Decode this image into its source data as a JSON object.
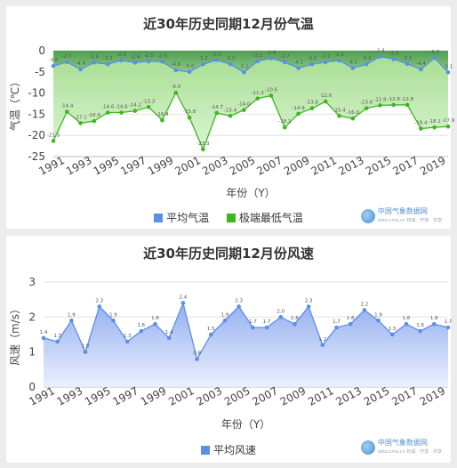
{
  "logo": {
    "name": "中国气象数据网",
    "sub": "data.cma.cn  权威 · 开放 · 共享"
  },
  "chart_data": [
    {
      "type": "area",
      "title": "近30年历史同期12月份气温",
      "xlabel": "年份（Y）",
      "ylabel": "气温（℃）",
      "ylim": [
        -25,
        0
      ],
      "yticks": [
        0,
        -5,
        -10,
        -15,
        -20,
        -25
      ],
      "x": [
        1991,
        1992,
        1993,
        1994,
        1995,
        1996,
        1997,
        1998,
        1999,
        2000,
        2001,
        2002,
        2003,
        2004,
        2005,
        2006,
        2007,
        2008,
        2009,
        2010,
        2011,
        2012,
        2013,
        2014,
        2015,
        2016,
        2017,
        2018,
        2019,
        2020
      ],
      "xtick_labels": [
        "1991",
        "1993",
        "1995",
        "1997",
        "1999",
        "2001",
        "2003",
        "2005",
        "2007",
        "2009",
        "2011",
        "2013",
        "2015",
        "2017",
        "2019"
      ],
      "series": [
        {
          "name": "平均气温",
          "color": "#5b8fe8",
          "values": [
            -3.6,
            -2.7,
            -4.4,
            -2.8,
            -3.2,
            -2.3,
            -2.8,
            -2.5,
            -2.6,
            -4.6,
            -5.0,
            -3.2,
            -2.2,
            -3.2,
            -5.1,
            -2.5,
            -1.8,
            -2.7,
            -4.1,
            -3.2,
            -2.7,
            -2.3,
            -4.1,
            -3.2,
            -1.4,
            -2.0,
            -3.1,
            -4.4,
            -1.7,
            -5.1
          ],
          "labels": [
            "-3.6",
            "-2.7",
            "-4.4",
            "-2.8",
            "-3.2",
            "-2.3",
            "-2.8",
            "-2.5",
            "-2.6",
            "-4.6",
            "-5.0",
            "-3.2",
            "-2.2",
            "-3.2",
            "-5.1",
            "-2.5",
            "-1.8",
            "-2.7",
            "-4.1",
            "-3.2",
            "-2.7",
            "-2.3",
            "-4.1",
            "-3.2",
            "-1.4",
            "-2.0",
            "-3.1",
            "-4.4",
            "-1.7",
            "-5.1"
          ]
        },
        {
          "name": "极端最低气温",
          "color": "#3cb81e",
          "values": [
            -21.3,
            -14.4,
            -17.1,
            -16.6,
            -14.6,
            -14.6,
            -14.2,
            -13.3,
            -16.4,
            -9.9,
            -15.8,
            -23.3,
            -14.7,
            -15.4,
            -14.0,
            -11.3,
            -10.6,
            -18.1,
            -14.9,
            -13.6,
            -12.0,
            -15.4,
            -16.0,
            -13.6,
            -12.9,
            -12.8,
            -12.8,
            -18.4,
            -18.1,
            -17.9
          ],
          "labels": [
            "-21.3",
            "-14.4",
            "-17.1",
            "-16.6",
            "-14.6",
            "-14.6",
            "-14.2",
            "-13.3",
            "-16.4",
            "-9.9",
            "-15.8",
            "-23.3",
            "-14.7",
            "-15.4",
            "-14.0",
            "-11.3",
            "-10.6",
            "-18.1",
            "-14.9",
            "-13.6",
            "-12.0",
            "-15.4",
            "-16.0",
            "-13.6",
            "-12.9",
            "-12.8",
            "-12.8",
            "-18.4",
            "-18.1",
            "-17.9"
          ]
        }
      ],
      "legend": "bottom"
    },
    {
      "type": "area",
      "title": "近30年历史同期12月份风速",
      "xlabel": "年份（Y）",
      "ylabel": "风速（m/s）",
      "ylim": [
        0,
        3
      ],
      "yticks": [
        0,
        1,
        2,
        3
      ],
      "x": [
        1991,
        1992,
        1993,
        1994,
        1995,
        1996,
        1997,
        1998,
        1999,
        2000,
        2001,
        2002,
        2003,
        2004,
        2005,
        2006,
        2007,
        2008,
        2009,
        2010,
        2011,
        2012,
        2013,
        2014,
        2015,
        2016,
        2017,
        2018,
        2019,
        2020
      ],
      "xtick_labels": [
        "1991",
        "1993",
        "1995",
        "1997",
        "1999",
        "2001",
        "2003",
        "2005",
        "2007",
        "2009",
        "2011",
        "2013",
        "2015",
        "2017",
        "2019"
      ],
      "series": [
        {
          "name": "平均风速",
          "color": "#5b8fe8",
          "values": [
            1.4,
            1.3,
            1.9,
            1.0,
            2.3,
            1.9,
            1.3,
            1.6,
            1.8,
            1.4,
            2.4,
            0.8,
            1.5,
            1.9,
            2.3,
            1.7,
            1.7,
            2.0,
            1.8,
            2.3,
            1.2,
            1.7,
            1.8,
            2.2,
            1.9,
            1.5,
            1.8,
            1.6,
            1.8,
            1.7
          ],
          "labels": [
            "1.4",
            "1.3",
            "1.9",
            "1.0",
            "2.3",
            "1.9",
            "1.3",
            "1.6",
            "1.8",
            "1.4",
            "2.4",
            "0.8",
            "1.5",
            "1.9",
            "2.3",
            "1.7",
            "1.7",
            "2.0",
            "1.8",
            "2.3",
            "1.2",
            "1.7",
            "1.8",
            "2.2",
            "1.9",
            "1.5",
            "1.8",
            "1.6",
            "1.8",
            "1.7"
          ]
        }
      ],
      "legend": "bottom"
    }
  ]
}
